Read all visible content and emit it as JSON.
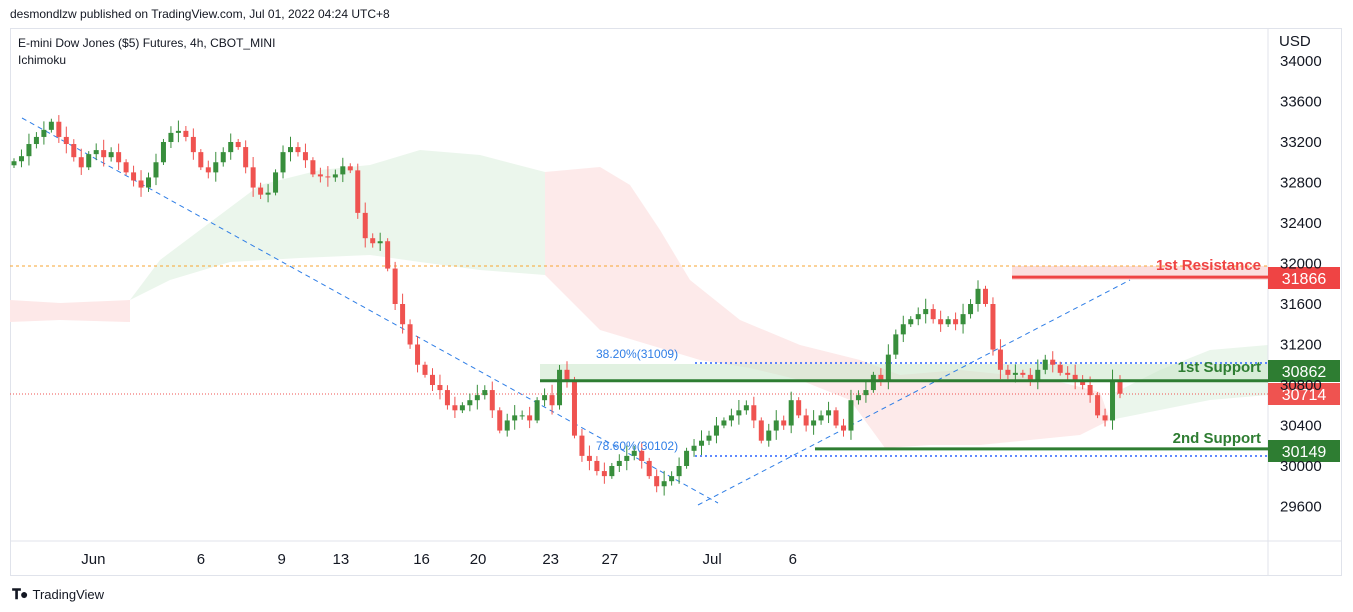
{
  "header": {
    "publish_line": "desmondlzw published on TradingView.com, Jul 01, 2022 04:24 UTC+8"
  },
  "legend": {
    "symbol_line": "E-mini Dow Jones ($5) Futures, 4h, CBOT_MINI",
    "indicator": "Ichimoku"
  },
  "price_axis": {
    "currency": "USD"
  },
  "footer": {
    "brand": "TradingView"
  },
  "colors": {
    "up": "#388e3c",
    "down": "#ef5350",
    "resistance": "#ef4444",
    "support": "#2e7d32",
    "fib": "#2962ff",
    "axis_text": "#131722"
  },
  "chart_data": {
    "type": "candlestick",
    "ylim": [
      29300,
      34200
    ],
    "y_ticks": [
      29600,
      30000,
      30400,
      30800,
      31200,
      31600,
      32000,
      32400,
      32800,
      33200,
      33600,
      34000
    ],
    "x_ticks": [
      {
        "label": "Jun",
        "x": 1.2
      },
      {
        "label": "6",
        "x": 5.2
      },
      {
        "label": "9",
        "x": 8.2
      },
      {
        "label": "13",
        "x": 10.4
      },
      {
        "label": "16",
        "x": 13.4
      },
      {
        "label": "20",
        "x": 15.5
      },
      {
        "label": "23",
        "x": 18.2
      },
      {
        "label": "27",
        "x": 20.4
      },
      {
        "label": "Jul",
        "x": 24.2
      },
      {
        "label": "6",
        "x": 27.2
      }
    ],
    "closes": [
      33010,
      33060,
      33180,
      33250,
      33320,
      33400,
      33250,
      33180,
      33050,
      32950,
      33080,
      33120,
      33050,
      33100,
      33000,
      32900,
      32820,
      32750,
      32850,
      33000,
      33200,
      33290,
      33310,
      33250,
      33100,
      32950,
      32900,
      33000,
      33100,
      33200,
      33150,
      32950,
      32750,
      32680,
      32700,
      32900,
      33100,
      33150,
      33100,
      33020,
      32880,
      32860,
      32850,
      32880,
      32960,
      32920,
      32500,
      32250,
      32200,
      32220,
      31950,
      31600,
      31400,
      31200,
      31000,
      30900,
      30800,
      30750,
      30600,
      30550,
      30600,
      30650,
      30700,
      30750,
      30550,
      30350,
      30450,
      30500,
      30500,
      30450,
      30650,
      30700,
      30600,
      30950,
      30850,
      30300,
      30100,
      30050,
      29950,
      29900,
      30000,
      30050,
      30100,
      30150,
      30050,
      29900,
      29800,
      29850,
      29900,
      30000,
      30150,
      30200,
      30250,
      30300,
      30400,
      30450,
      30500,
      30550,
      30600,
      30450,
      30250,
      30350,
      30450,
      30400,
      30650,
      30500,
      30400,
      30450,
      30500,
      30550,
      30400,
      30350,
      30650,
      30700,
      30750,
      30900,
      30850,
      31100,
      31300,
      31400,
      31450,
      31500,
      31550,
      31450,
      31400,
      31450,
      31400,
      31500,
      31600,
      31750,
      31600,
      31150,
      30950,
      30900,
      30920,
      30900,
      30850,
      30950,
      31050,
      31000,
      30920,
      30900,
      30850,
      30800,
      30700,
      30500,
      30450,
      30850,
      30714
    ]
  },
  "annotations": {
    "resistance_label": "1st Resistance",
    "resistance_value": "31866",
    "support1_label": "1st Support",
    "support1_value": "30862",
    "support2_label": "2nd Support",
    "support2_value": "30149",
    "current_price": "30714",
    "fib1_text": "38.20%(31009)",
    "fib2_text": "78.60%(30102)"
  }
}
